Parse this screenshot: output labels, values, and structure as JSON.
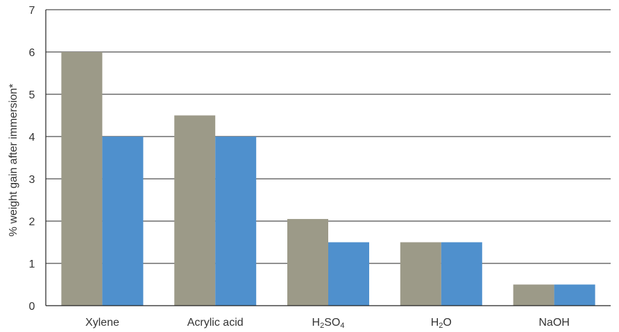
{
  "chart_data": {
    "type": "bar",
    "ylabel": "% weight gain after immersion*",
    "ylim": [
      0,
      7
    ],
    "yticks": [
      0,
      1,
      2,
      3,
      4,
      5,
      6,
      7
    ],
    "grid": true,
    "categories": [
      {
        "parts": [
          {
            "t": "Xylene"
          }
        ]
      },
      {
        "parts": [
          {
            "t": "Acrylic acid"
          }
        ]
      },
      {
        "parts": [
          {
            "t": "H"
          },
          {
            "t": "2",
            "sub": true
          },
          {
            "t": "SO"
          },
          {
            "t": "4",
            "sub": true
          }
        ]
      },
      {
        "parts": [
          {
            "t": "H"
          },
          {
            "t": "2",
            "sub": true
          },
          {
            "t": "O"
          }
        ]
      },
      {
        "parts": [
          {
            "t": "NaOH"
          }
        ]
      }
    ],
    "series": [
      {
        "color": "#9c9a88",
        "values": [
          6,
          4.5,
          2.05,
          1.5,
          0.5
        ]
      },
      {
        "color": "#4f90cd",
        "values": [
          4,
          4,
          1.5,
          1.5,
          0.5
        ]
      }
    ]
  }
}
